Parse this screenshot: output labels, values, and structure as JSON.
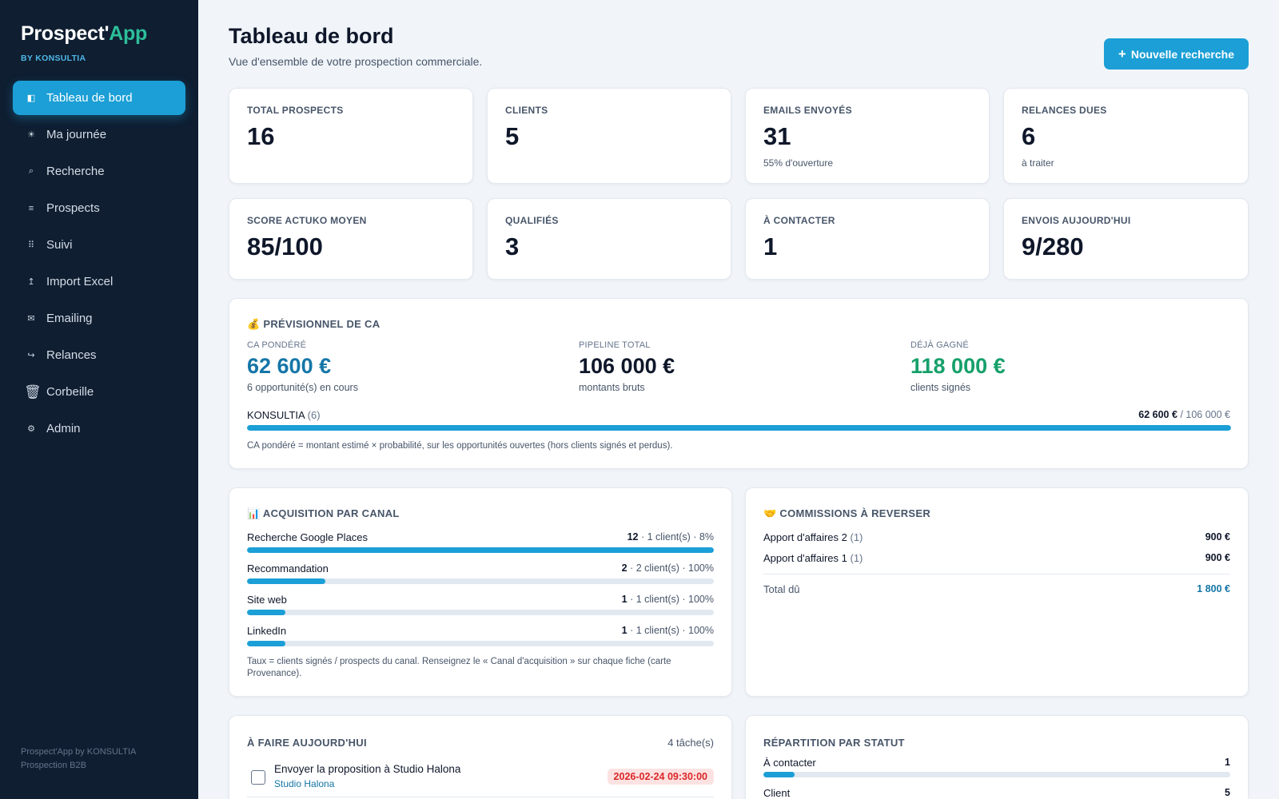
{
  "sidebar": {
    "brand_main": "Prospect'",
    "brand_accent": "App",
    "brand_sub": "BY KONSULTIA",
    "items": [
      {
        "label": "Tableau de bord",
        "icon": "◧"
      },
      {
        "label": "Ma journée",
        "icon": "☀"
      },
      {
        "label": "Recherche",
        "icon": "⌕"
      },
      {
        "label": "Prospects",
        "icon": "≡"
      },
      {
        "label": "Suivi",
        "icon": "⠿"
      },
      {
        "label": "Import Excel",
        "icon": "↥"
      },
      {
        "label": "Emailing",
        "icon": "✉"
      },
      {
        "label": "Relances",
        "icon": "↪"
      },
      {
        "label": "Corbeille",
        "icon": "🗑"
      },
      {
        "label": "Admin",
        "icon": "⚙"
      }
    ],
    "footer_line1": "Prospect'App by KONSULTIA",
    "footer_line2": "Prospection B2B"
  },
  "header": {
    "title": "Tableau de bord",
    "subtitle": "Vue d'ensemble de votre prospection commerciale.",
    "new_button": "Nouvelle recherche",
    "new_button_icon": "+"
  },
  "kpis": [
    {
      "label": "TOTAL PROSPECTS",
      "value": "16",
      "note": ""
    },
    {
      "label": "CLIENTS",
      "value": "5",
      "note": ""
    },
    {
      "label": "EMAILS ENVOYÉS",
      "value": "31",
      "note": "55% d'ouverture"
    },
    {
      "label": "RELANCES DUES",
      "value": "6",
      "note": "à traiter"
    },
    {
      "label": "SCORE ACTUKO MOYEN",
      "value": "85/100",
      "note": ""
    },
    {
      "label": "QUALIFIÉS",
      "value": "3",
      "note": ""
    },
    {
      "label": "À CONTACTER",
      "value": "1",
      "note": ""
    },
    {
      "label": "ENVOIS AUJOURD'HUI",
      "value": "9/280",
      "note": ""
    }
  ],
  "forecast": {
    "title": "💰 PRÉVISIONNEL DE CA",
    "ca_label": "CA PONDÉRÉ",
    "ca_value": "62 600 €",
    "ca_note": "6 opportunité(s) en cours",
    "pipeline_label": "PIPELINE TOTAL",
    "pipeline_value": "106 000 €",
    "pipeline_note": "montants bruts",
    "won_label": "DÉJÀ GAGNÉ",
    "won_value": "118 000 €",
    "won_note": "clients signés",
    "bar_name": "KONSULTIA",
    "bar_count": "(6)",
    "bar_value": "62 600 €",
    "bar_total": "/ 106 000 €",
    "bar_fill": 1.0,
    "footnote": "CA pondéré = montant estimé × probabilité, sur les opportunités ouvertes (hors clients signés et perdus)."
  },
  "acquisition": {
    "title": "📊 ACQUISITION PAR CANAL",
    "rows": [
      {
        "name": "Recherche Google Places",
        "count": "12",
        "detail": "· 1 client(s) · 8%",
        "fill": 1.0
      },
      {
        "name": "Recommandation",
        "count": "2",
        "detail": "· 2 client(s) · 100%",
        "fill": 0.167
      },
      {
        "name": "Site web",
        "count": "1",
        "detail": "· 1 client(s) · 100%",
        "fill": 0.083
      },
      {
        "name": "LinkedIn",
        "count": "1",
        "detail": "· 1 client(s) · 100%",
        "fill": 0.083
      }
    ],
    "footnote": "Taux = clients signés / prospects du canal. Renseignez le « Canal d'acquisition » sur chaque fiche (carte Provenance)."
  },
  "commissions": {
    "title": "🤝 COMMISSIONS À REVERSER",
    "rows": [
      {
        "name": "Apport d'affaires 2",
        "count": "(1)",
        "amount": "900 €"
      },
      {
        "name": "Apport d'affaires 1",
        "count": "(1)",
        "amount": "900 €"
      }
    ],
    "total_label": "Total dû",
    "total_value": "1 800 €"
  },
  "todo": {
    "title": "À FAIRE AUJOURD'HUI",
    "count": "4 tâche(s)",
    "items": [
      {
        "task": "Envoyer la proposition à Studio Halona",
        "company": "Studio Halona",
        "due": "2026-02-24 09:30:00"
      }
    ]
  },
  "status": {
    "title": "RÉPARTITION PAR STATUT",
    "rows": [
      {
        "name": "À contacter",
        "value": "1",
        "fill": 0.067
      },
      {
        "name": "Client",
        "value": "5",
        "fill": 0.333
      }
    ]
  },
  "colors": {
    "accent": "#1b9fd6",
    "brand_green": "#2dbe9a",
    "ca_blue": "#1576a8",
    "won_green": "#16a06a",
    "danger": "#dc2626",
    "sidebar_bg": "#0f1e31"
  }
}
